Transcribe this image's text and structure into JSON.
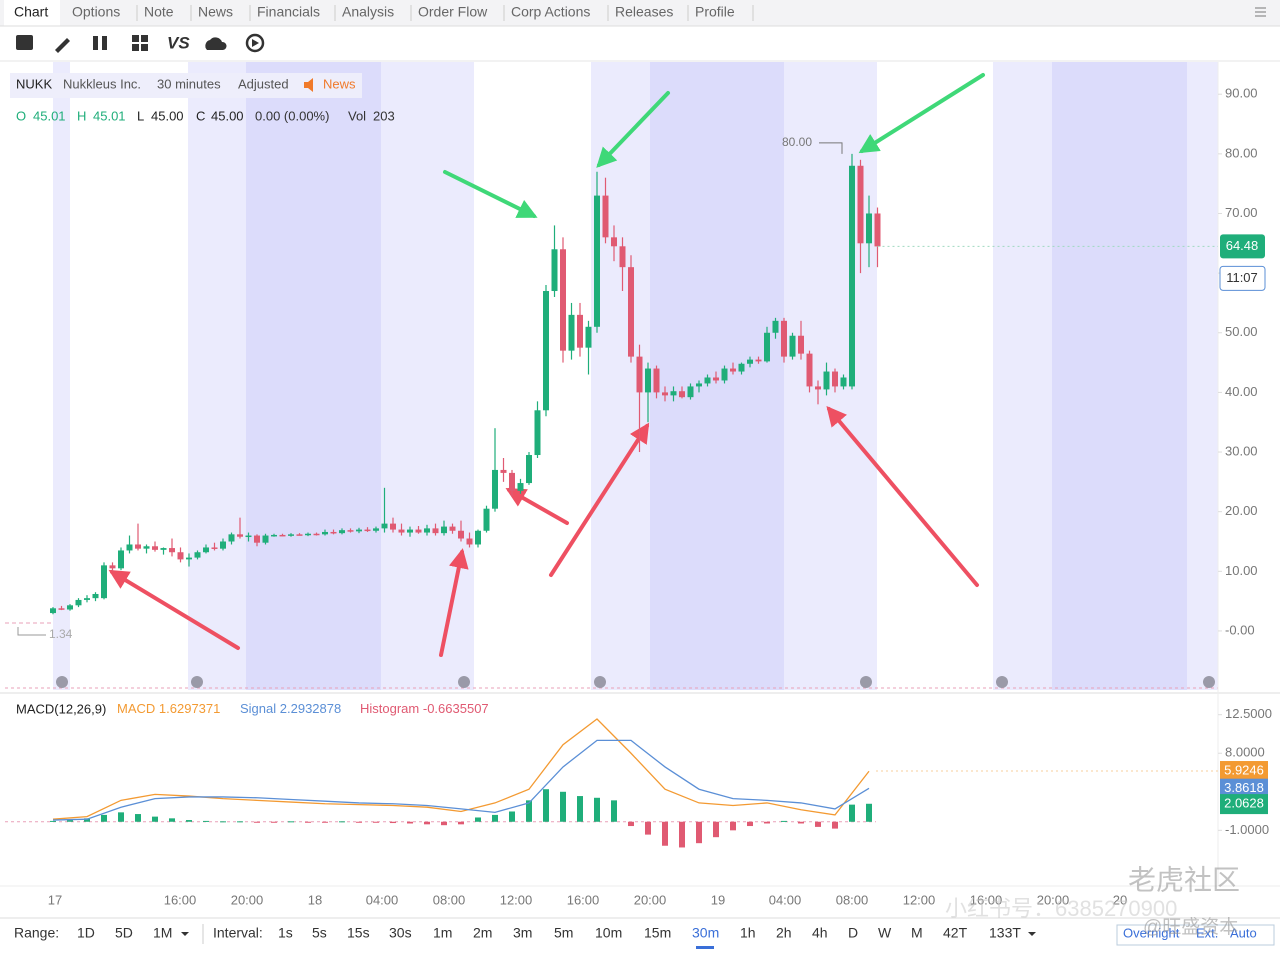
{
  "tabs": [
    "Chart",
    "Options",
    "Note",
    "News",
    "Financials",
    "Analysis",
    "Order Flow",
    "Corp Actions",
    "Releases",
    "Profile"
  ],
  "toolbar": {
    "compare": "VS"
  },
  "chart_data": [
    {
      "type": "candlestick",
      "symbol": "NUKK",
      "name": "Nukkleus Inc.",
      "interval": "30 minutes",
      "adjustment": "Adjusted",
      "news": "News",
      "quote": [
        {
          "label": "O",
          "value": "45.01"
        },
        {
          "label": "H",
          "value": "45.01"
        },
        {
          "label": "L",
          "value": "45.00"
        },
        {
          "label": "C",
          "value": "45.00"
        }
      ],
      "change": "0.00 (0.00%)",
      "volume": {
        "label": "Vol",
        "value": "203"
      },
      "up_color": "#1fae7a",
      "down_color": "#e05a72",
      "ohlc": [
        [
          3,
          4,
          2.8,
          3.8
        ],
        [
          3.8,
          4.2,
          3.5,
          3.6
        ],
        [
          3.6,
          4.5,
          3.4,
          4.3
        ],
        [
          4.3,
          5.5,
          4,
          5.2
        ],
        [
          5.2,
          6,
          4.8,
          5.5
        ],
        [
          5.5,
          6.5,
          5,
          6.2
        ],
        [
          5.5,
          11.5,
          5.3,
          11
        ],
        [
          11,
          11.5,
          10,
          10.5
        ],
        [
          10.5,
          14,
          10.2,
          13.5
        ],
        [
          13.5,
          16,
          13,
          14.5
        ],
        [
          14.5,
          18,
          13.5,
          13.8
        ],
        [
          13.8,
          14.5,
          13,
          14.2
        ],
        [
          14.2,
          15,
          13.3,
          13.6
        ],
        [
          13.6,
          14,
          12.8,
          13.9
        ],
        [
          13.9,
          15.5,
          12.5,
          13.2
        ],
        [
          13.2,
          14,
          11.5,
          12
        ],
        [
          12,
          13,
          10.8,
          12.3
        ],
        [
          12.3,
          13.5,
          12,
          13.2
        ],
        [
          13.2,
          14.5,
          13,
          14
        ],
        [
          14,
          14.8,
          13.5,
          13.8
        ],
        [
          13.8,
          15.5,
          13.5,
          15
        ],
        [
          15,
          16.5,
          14.5,
          16.2
        ],
        [
          16.2,
          19,
          15.5,
          15.8
        ],
        [
          15.8,
          16.5,
          15,
          16
        ],
        [
          16,
          16.2,
          14.2,
          14.8
        ],
        [
          14.8,
          16.3,
          14.5,
          16
        ],
        [
          16,
          16.3,
          15.8,
          16.1
        ],
        [
          16.1,
          16.3,
          15.9,
          16
        ],
        [
          16,
          16.4,
          15.8,
          16.2
        ],
        [
          16.2,
          16.4,
          16,
          16.1
        ],
        [
          16.1,
          16.5,
          15.9,
          16.3
        ],
        [
          16.3,
          16.5,
          16,
          16.2
        ],
        [
          16.2,
          17,
          16,
          16.6
        ],
        [
          16.6,
          17,
          16.2,
          16.4
        ],
        [
          16.4,
          17.2,
          16.2,
          16.9
        ],
        [
          16.9,
          17.2,
          16.5,
          16.7
        ],
        [
          16.7,
          17.3,
          16.4,
          17
        ],
        [
          17,
          17.4,
          16.6,
          16.8
        ],
        [
          16.8,
          17.5,
          16.5,
          17.2
        ],
        [
          17.2,
          24,
          16.5,
          18
        ],
        [
          18,
          19,
          16.5,
          17
        ],
        [
          17,
          18,
          16,
          16.5
        ],
        [
          16.5,
          17.5,
          15.8,
          17
        ],
        [
          17,
          17.6,
          16.3,
          16.5
        ],
        [
          16.5,
          17.8,
          16,
          17.2
        ],
        [
          17.2,
          18,
          16,
          16.4
        ],
        [
          16.4,
          18.5,
          16,
          17.5
        ],
        [
          17.5,
          18,
          16.3,
          16.8
        ],
        [
          16.8,
          18.5,
          15,
          15.5
        ],
        [
          15.5,
          16.5,
          14,
          14.5
        ],
        [
          14.5,
          17,
          14,
          16.8
        ],
        [
          16.8,
          21,
          16.5,
          20.5
        ],
        [
          20.5,
          34,
          20,
          27
        ],
        [
          27,
          29,
          25,
          26.5
        ],
        [
          26.5,
          27,
          22.5,
          23.5
        ],
        [
          23.5,
          25.5,
          23,
          24.8
        ],
        [
          24.8,
          30,
          24.5,
          29.5
        ],
        [
          29.5,
          38.5,
          29,
          37
        ],
        [
          37,
          58,
          36,
          57
        ],
        [
          57,
          68,
          56,
          64
        ],
        [
          64,
          66,
          45,
          47
        ],
        [
          47,
          55,
          45.5,
          53
        ],
        [
          53,
          55,
          46,
          47.5
        ],
        [
          47.5,
          52,
          43,
          51
        ],
        [
          51,
          77,
          50,
          73
        ],
        [
          73,
          76,
          65,
          66
        ],
        [
          66,
          68,
          62,
          64.5
        ],
        [
          64.5,
          66,
          57,
          61
        ],
        [
          61,
          63,
          45,
          46
        ],
        [
          46,
          48,
          30,
          40
        ],
        [
          40,
          45,
          35,
          44
        ],
        [
          44,
          44.5,
          39,
          40
        ],
        [
          40,
          41,
          38.5,
          39.5
        ],
        [
          39.5,
          41,
          38.5,
          40.2
        ],
        [
          40.2,
          41,
          39,
          39.2
        ],
        [
          39.2,
          41.5,
          38.8,
          41
        ],
        [
          41,
          42,
          40,
          41.5
        ],
        [
          41.5,
          43,
          41,
          42.5
        ],
        [
          42.5,
          43.5,
          41.5,
          42
        ],
        [
          42,
          44.5,
          41.5,
          44
        ],
        [
          44,
          45,
          43,
          43.5
        ],
        [
          43.5,
          45,
          43,
          44.8
        ],
        [
          44.8,
          46,
          44.2,
          45.5
        ],
        [
          45.5,
          46,
          44.8,
          45.2
        ],
        [
          45.2,
          51,
          45,
          50
        ],
        [
          50,
          52.5,
          49,
          52
        ],
        [
          52,
          52.5,
          45,
          46
        ],
        [
          46,
          50,
          45.5,
          49.5
        ],
        [
          49.5,
          52,
          45.5,
          46.5
        ],
        [
          46.5,
          47,
          40,
          41
        ],
        [
          41,
          42,
          38,
          40.5
        ],
        [
          40.5,
          45,
          39.5,
          43.5
        ],
        [
          43.5,
          44,
          40,
          41
        ],
        [
          41,
          43,
          40.5,
          42.5
        ],
        [
          41,
          80,
          40.5,
          78
        ],
        [
          78,
          79,
          60,
          65
        ],
        [
          65,
          73,
          61,
          70
        ],
        [
          70,
          71,
          61,
          64.48
        ]
      ],
      "ylim": [
        -9.9,
        95.4
      ],
      "yticks": [
        {
          "value": 90,
          "label": "90.00"
        },
        {
          "value": 80,
          "label": "80.00"
        },
        {
          "value": 70,
          "label": "70.00"
        },
        {
          "value": 60,
          "label": "60.00"
        },
        {
          "value": 50,
          "label": "50.00"
        },
        {
          "value": 40,
          "label": "40.00"
        },
        {
          "value": 30,
          "label": "30.00"
        },
        {
          "value": 20,
          "label": "20.00"
        },
        {
          "value": 10,
          "label": "10.00"
        },
        {
          "value": 0,
          "label": "-0.00"
        }
      ],
      "last_price": 64.48,
      "countdown": "11:07",
      "annotations": [
        {
          "value": 80,
          "label": "80.00"
        },
        {
          "value": 1.34,
          "label": "1.34"
        }
      ],
      "x_labels": [
        "17",
        "16:00",
        "20:00",
        "18",
        "04:00",
        "08:00",
        "12:00",
        "16:00",
        "20:00",
        "19",
        "04:00",
        "08:00",
        "12:00",
        "16:00",
        "20:00",
        "20"
      ]
    },
    {
      "type": "macd",
      "title": "MACD(12,26,9)",
      "series": [
        {
          "name": "MACD",
          "color": "#f39a32",
          "current": "1.6297371",
          "badge": 5.9246,
          "values": [
            0.3,
            0.6,
            2.5,
            3.2,
            3.0,
            2.7,
            2.5,
            2.3,
            2.1,
            2.0,
            1.9,
            1.7,
            1.2,
            2.2,
            3.8,
            9.0,
            12.0,
            8.0,
            3.8,
            2.2,
            1.9,
            2.2,
            1.4,
            0.8,
            5.9
          ]
        },
        {
          "name": "Signal",
          "color": "#5b8fd6",
          "current": "2.2932878",
          "badge": 3.8618,
          "values": [
            0.2,
            0.3,
            1.7,
            2.7,
            2.9,
            2.9,
            2.8,
            2.6,
            2.4,
            2.2,
            2.1,
            1.9,
            1.5,
            1.1,
            2.2,
            6.4,
            9.5,
            9.5,
            6.4,
            3.8,
            2.7,
            2.5,
            2.2,
            1.5,
            3.9
          ]
        },
        {
          "name": "Histogram",
          "color": "#e05a72",
          "up_color": "#1fae7a",
          "current": "-0.6635507",
          "badge": 2.0628,
          "values": [
            0.1,
            0.2,
            0.4,
            0.8,
            1.1,
            0.9,
            0.6,
            0.4,
            0.2,
            0.1,
            0.05,
            0.05,
            -0.05,
            -0.05,
            0.05,
            -0.1,
            -0.05,
            0.05,
            -0.1,
            -0.1,
            -0.15,
            -0.2,
            -0.3,
            -0.4,
            -0.3,
            0.5,
            0.8,
            1.2,
            2.5,
            3.8,
            3.5,
            3.0,
            2.8,
            2.5,
            -0.5,
            -1.5,
            -2.8,
            -3.0,
            -2.5,
            -1.8,
            -1.0,
            -0.5,
            -0.2,
            0.1,
            -0.2,
            -0.6,
            -0.8,
            2.0,
            2.1
          ]
        }
      ],
      "ylim": [
        -7.5,
        14.8
      ],
      "yticks": [
        {
          "value": 12.5,
          "label": "12.5000"
        },
        {
          "value": 8,
          "label": "8.0000"
        },
        {
          "value": -1,
          "label": "-1.0000"
        }
      ]
    }
  ],
  "range_bar": {
    "label": "Range:",
    "options": [
      "1D",
      "5D",
      "1M"
    ],
    "interval_label": "Interval:",
    "intervals": [
      "1s",
      "5s",
      "15s",
      "30s",
      "1m",
      "2m",
      "3m",
      "5m",
      "10m",
      "15m",
      "30m",
      "1h",
      "2h",
      "4h",
      "D",
      "W",
      "M",
      "42T",
      "133T"
    ],
    "selected_interval": 10,
    "session": [
      "Overnight",
      "Ext.",
      "Auto"
    ]
  },
  "watermarks": [
    "老虎社区",
    "小红书号：6385270900",
    "@旺盛资本"
  ]
}
